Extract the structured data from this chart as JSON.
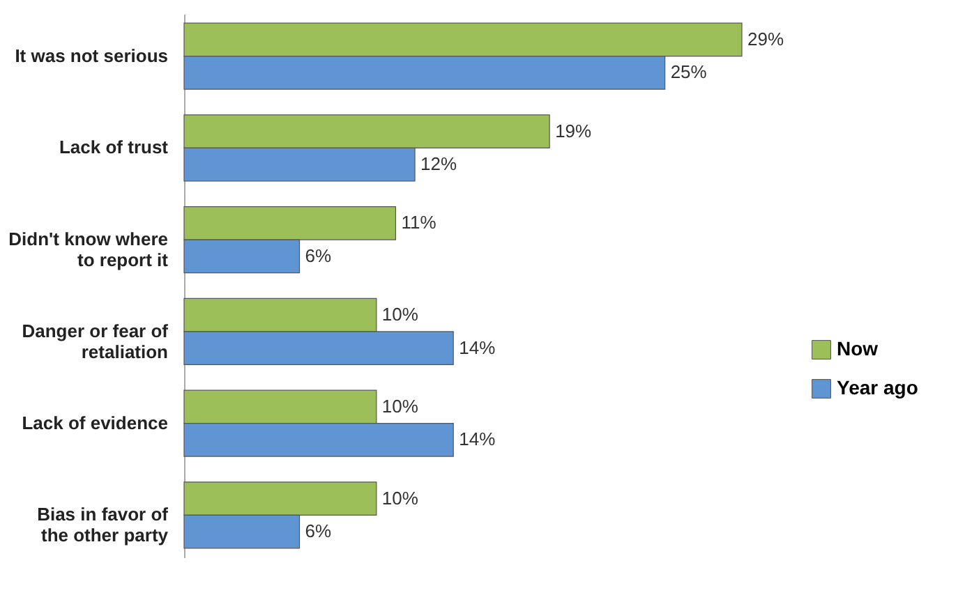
{
  "chart_data": {
    "type": "bar",
    "orientation": "horizontal",
    "categories": [
      "It was not serious",
      "Lack of trust",
      "Didn't know where to report it",
      "Danger or fear of retaliation",
      "Lack of evidence",
      "Bias in favor of the other party"
    ],
    "series": [
      {
        "name": "Now",
        "color": "#9dbf5a",
        "values": [
          29,
          19,
          11,
          10,
          10,
          10
        ],
        "value_labels": [
          "29%",
          "19%",
          "11%",
          "10%",
          "10%",
          "10%"
        ]
      },
      {
        "name": "Year ago",
        "color": "#5f95d2",
        "values": [
          25,
          12,
          6,
          14,
          14,
          6
        ],
        "value_labels": [
          "25%",
          "12%",
          "6%",
          "14%",
          "14%",
          "6%"
        ]
      }
    ],
    "tick_labels": "y",
    "legend": "right"
  }
}
